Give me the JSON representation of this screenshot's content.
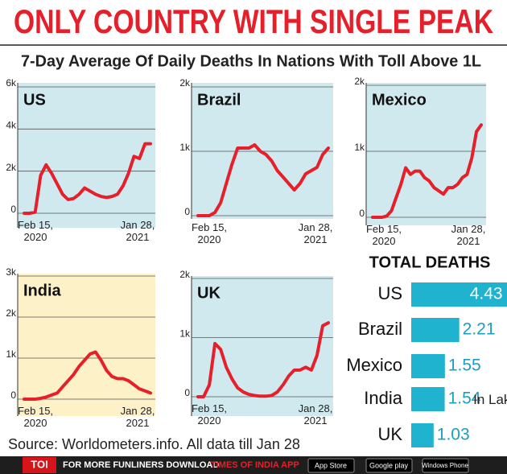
{
  "title": "ONLY COUNTRY WITH SINGLE PEAK",
  "subtitle": "7-Day Average Of Daily Deaths In Nations With Toll Above 1L",
  "chart_data": [
    {
      "type": "line",
      "title": "US",
      "color": "#e5202a",
      "background": "#cfe9ef",
      "ylim": [
        0,
        6000
      ],
      "yticks": [
        0,
        {
          "value": 2000,
          "label": "2k"
        },
        {
          "value": 4000,
          "label": "4k"
        },
        {
          "value": 6000,
          "label": "6k"
        }
      ],
      "x_labels": [
        "Feb 15, 2020",
        "Jan 28, 2021"
      ],
      "values": [
        0,
        0,
        50,
        1800,
        2300,
        1900,
        1400,
        900,
        650,
        700,
        900,
        1200,
        1050,
        900,
        800,
        750,
        800,
        900,
        1300,
        1900,
        2700,
        2600,
        3300,
        3300
      ]
    },
    {
      "type": "line",
      "title": "Brazil",
      "color": "#e5202a",
      "background": "#cfe9ef",
      "ylim": [
        0,
        2000
      ],
      "yticks": [
        0,
        {
          "value": 1000,
          "label": "1k"
        },
        {
          "value": 2000,
          "label": "2k"
        }
      ],
      "x_labels": [
        "Feb 15, 2020",
        "Jan 28, 2021"
      ],
      "values": [
        0,
        0,
        0,
        50,
        200,
        500,
        800,
        1050,
        1050,
        1050,
        1100,
        1000,
        950,
        850,
        700,
        600,
        500,
        400,
        500,
        650,
        700,
        750,
        950,
        1050
      ]
    },
    {
      "type": "line",
      "title": "Mexico",
      "color": "#e5202a",
      "background": "#cfe9ef",
      "ylim": [
        0,
        2000
      ],
      "yticks": [
        0,
        {
          "value": 1000,
          "label": "1k"
        },
        {
          "value": 2000,
          "label": "2k"
        }
      ],
      "x_labels": [
        "Feb 15, 2020",
        "Jan 28, 2021"
      ],
      "values": [
        0,
        0,
        0,
        20,
        100,
        300,
        500,
        750,
        650,
        700,
        700,
        600,
        550,
        450,
        400,
        350,
        450,
        450,
        500,
        600,
        650,
        900,
        1300,
        1400
      ]
    },
    {
      "type": "line",
      "title": "India",
      "color": "#e5202a",
      "background": "#fdf1c7",
      "ylim": [
        0,
        3000
      ],
      "yticks": [
        0,
        {
          "value": 1000,
          "label": "1k"
        },
        {
          "value": 2000,
          "label": "2k"
        },
        {
          "value": 3000,
          "label": "3k"
        }
      ],
      "x_labels": [
        "Feb 15, 2020",
        "Jan 28, 2021"
      ],
      "values": [
        0,
        0,
        0,
        20,
        50,
        100,
        150,
        300,
        450,
        600,
        800,
        950,
        1100,
        1150,
        950,
        700,
        550,
        500,
        500,
        450,
        350,
        250,
        200,
        150
      ]
    },
    {
      "type": "line",
      "title": "UK",
      "color": "#e5202a",
      "background": "#cfe9ef",
      "ylim": [
        0,
        2000
      ],
      "yticks": [
        0,
        {
          "value": 1000,
          "label": "1k"
        },
        {
          "value": 2000,
          "label": "2k"
        }
      ],
      "x_labels": [
        "Feb 15, 2020",
        "Jan 28, 2021"
      ],
      "values": [
        0,
        0,
        200,
        900,
        800,
        500,
        300,
        150,
        80,
        40,
        20,
        10,
        10,
        20,
        80,
        200,
        350,
        450,
        450,
        500,
        450,
        700,
        1200,
        1250
      ]
    },
    {
      "type": "bar",
      "title": "TOTAL DEATHS",
      "color": "#1fb3cf",
      "unit_label": "In Lakh",
      "categories": [
        "US",
        "Brazil",
        "Mexico",
        "India",
        "UK"
      ],
      "values": [
        4.43,
        2.21,
        1.55,
        1.54,
        1.03
      ]
    }
  ],
  "source": "Source: Worldometers.info. All data till Jan 28",
  "footer": {
    "logo": "TOI",
    "promo": "FOR MORE  FUNLINERS DOWNLOAD",
    "app": "TIMES OF INDIA APP",
    "badges": [
      "App Store",
      "Google play",
      "Windows Phone"
    ]
  }
}
